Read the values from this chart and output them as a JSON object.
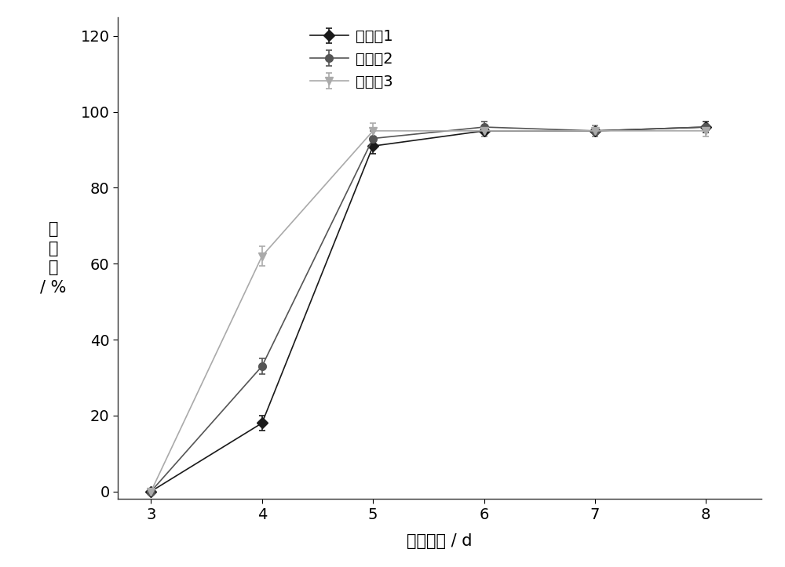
{
  "x": [
    3,
    4,
    5,
    6,
    7,
    8
  ],
  "series": [
    {
      "label": "对比例1",
      "y": [
        0,
        18,
        91,
        95,
        95,
        96
      ],
      "yerr": [
        0.5,
        2,
        2,
        1.5,
        1.5,
        1.5
      ],
      "color": "#1a1a1a",
      "marker": "D",
      "markersize": 7,
      "linewidth": 1.2,
      "linestyle": "-"
    },
    {
      "label": "对比例2",
      "y": [
        0,
        33,
        93,
        96,
        95,
        96
      ],
      "yerr": [
        0.5,
        2,
        2,
        1.5,
        1.5,
        1.5
      ],
      "color": "#555555",
      "marker": "o",
      "markersize": 7,
      "linewidth": 1.2,
      "linestyle": "-"
    },
    {
      "label": "实施例3",
      "y": [
        0,
        62,
        95,
        95,
        95,
        95
      ],
      "yerr": [
        0.5,
        2.5,
        2,
        1.5,
        1.5,
        1.5
      ],
      "color": "#aaaaaa",
      "marker": "v",
      "markersize": 7,
      "linewidth": 1.2,
      "linestyle": "-"
    }
  ],
  "xlabel": "发芽时间 / d",
  "ylabel_lines": [
    "发",
    "芽",
    "率",
    "/ %"
  ],
  "xlim": [
    2.7,
    8.5
  ],
  "ylim": [
    -2,
    125
  ],
  "yticks": [
    0,
    20,
    40,
    60,
    80,
    100,
    120
  ],
  "xticks": [
    3,
    4,
    5,
    6,
    7,
    8
  ],
  "background_color": "#ffffff",
  "fontsize": 15
}
